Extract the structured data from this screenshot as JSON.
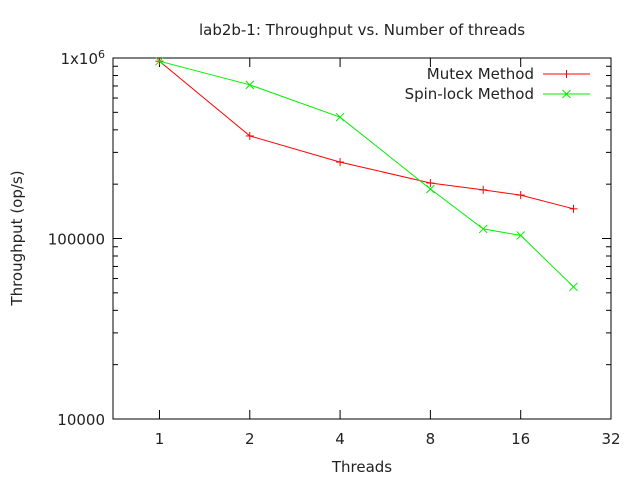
{
  "chart_data": {
    "type": "line",
    "title": "lab2b-1: Throughput vs. Number of threads",
    "xlabel": "Threads",
    "ylabel": "Throughput (op/s)",
    "x_scale": "log2",
    "y_scale": "log10",
    "xlim": [
      0.7,
      32
    ],
    "ylim": [
      10000,
      1000000
    ],
    "x_ticks": [
      1,
      2,
      4,
      8,
      16,
      32
    ],
    "x_tick_labels": [
      "1",
      "2",
      "4",
      "8",
      "16",
      "32"
    ],
    "y_ticks": [
      10000,
      100000,
      1000000
    ],
    "y_tick_labels": [
      "10000",
      "100000",
      "1x10"
    ],
    "y_tick_top_superscript": "6",
    "legend_position": "top-right",
    "series": [
      {
        "name": "Mutex Method",
        "color": "#ff0000",
        "marker": "plus",
        "x": [
          1,
          2,
          4,
          8,
          12,
          16,
          24
        ],
        "y": [
          960000,
          370000,
          265000,
          203000,
          186000,
          174000,
          146000
        ]
      },
      {
        "name": "Spin-lock Method",
        "color": "#00ee00",
        "marker": "cross",
        "x": [
          1,
          2,
          4,
          8,
          12,
          16,
          24
        ],
        "y": [
          960000,
          710000,
          470000,
          188000,
          113000,
          104000,
          54000
        ]
      }
    ]
  }
}
